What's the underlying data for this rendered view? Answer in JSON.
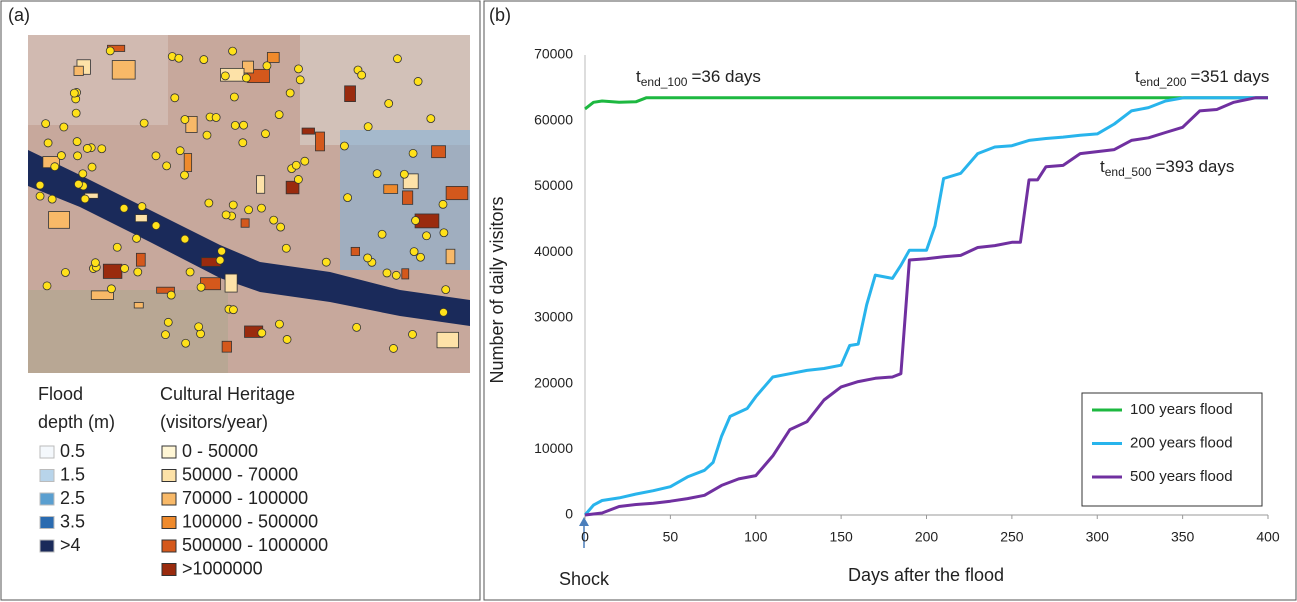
{
  "panel_a": {
    "label": "(a)",
    "flood_legend": {
      "title": [
        "Flood",
        "depth (m)"
      ],
      "items": [
        {
          "label": "0.5",
          "color": "#f4f8fc"
        },
        {
          "label": "1.5",
          "color": "#b8d4ea"
        },
        {
          "label": "2.5",
          "color": "#5a9fd0"
        },
        {
          "label": "3.5",
          "color": "#2a6bb0"
        },
        {
          "label": ">4",
          "color": "#1a2a5a"
        }
      ]
    },
    "heritage_legend": {
      "title": [
        "Cultural Heritage",
        "(visitors/year)"
      ],
      "items": [
        {
          "label": "0 - 50000",
          "color": "#fff6d5"
        },
        {
          "label": "50000 - 70000",
          "color": "#fde2a8"
        },
        {
          "label": "70000 - 100000",
          "color": "#f8b968"
        },
        {
          "label": "100000 - 500000",
          "color": "#ef8a2c"
        },
        {
          "label": "500000 - 1000000",
          "color": "#d4581c"
        },
        {
          "label": ">1000000",
          "color": "#9a2b0e"
        }
      ]
    }
  },
  "chart_data": {
    "type": "line",
    "panel_label": "(b)",
    "x_label": "Days after the flood",
    "y_label": "Number of daily visitors",
    "shock_label": "Shock",
    "xlim": [
      0,
      400
    ],
    "xticks": [
      0,
      50,
      100,
      150,
      200,
      250,
      300,
      350,
      400
    ],
    "ylim": [
      0,
      70000
    ],
    "yticks": [
      0,
      10000,
      20000,
      30000,
      40000,
      50000,
      60000,
      70000
    ],
    "grid": false,
    "legend_position": "lower right",
    "annotations": [
      {
        "t": "t",
        "sub": "end_100",
        "text": "=36 days"
      },
      {
        "t": "t",
        "sub": "end_200",
        "text": "=351 days"
      },
      {
        "t": "t",
        "sub": "end_500",
        "text": "=393 days"
      }
    ],
    "series": [
      {
        "name": "100 years flood",
        "color": "#1db840",
        "x": [
          0,
          5,
          10,
          20,
          30,
          36,
          50,
          100,
          200,
          300,
          400
        ],
        "values": [
          61800,
          62800,
          63000,
          62800,
          62900,
          63500,
          63500,
          63500,
          63500,
          63500,
          63500
        ]
      },
      {
        "name": "200 years flood",
        "color": "#28b4ec",
        "x": [
          0,
          5,
          10,
          20,
          30,
          40,
          50,
          60,
          70,
          75,
          80,
          85,
          95,
          100,
          110,
          120,
          130,
          140,
          150,
          155,
          160,
          165,
          170,
          180,
          185,
          190,
          200,
          205,
          210,
          220,
          230,
          240,
          250,
          260,
          270,
          280,
          290,
          300,
          310,
          320,
          330,
          340,
          351,
          400
        ],
        "values": [
          0,
          1500,
          2200,
          2600,
          3200,
          3700,
          4300,
          5800,
          6800,
          8000,
          12000,
          15000,
          16200,
          18000,
          21000,
          21500,
          22000,
          22300,
          22800,
          25800,
          26000,
          32000,
          36500,
          36000,
          38000,
          40300,
          40300,
          44000,
          51200,
          52000,
          55000,
          56000,
          56200,
          57000,
          57300,
          57500,
          57800,
          58000,
          59500,
          61500,
          62000,
          63000,
          63500,
          63500
        ]
      },
      {
        "name": "500 years flood",
        "color": "#7030a0",
        "x": [
          0,
          10,
          20,
          30,
          40,
          50,
          60,
          70,
          80,
          90,
          100,
          110,
          120,
          130,
          140,
          150,
          160,
          170,
          180,
          185,
          190,
          200,
          210,
          220,
          230,
          240,
          250,
          255,
          260,
          265,
          270,
          280,
          290,
          300,
          310,
          320,
          330,
          340,
          350,
          360,
          370,
          380,
          393,
          400
        ],
        "values": [
          0,
          300,
          1300,
          1600,
          1800,
          2100,
          2500,
          3000,
          4500,
          5500,
          6000,
          9000,
          13000,
          14200,
          17500,
          19500,
          20300,
          20800,
          21000,
          21500,
          38800,
          39000,
          39300,
          39500,
          40700,
          41000,
          41500,
          41500,
          51000,
          51000,
          53000,
          53200,
          55000,
          55300,
          55600,
          57000,
          57400,
          58200,
          59000,
          61500,
          61700,
          62800,
          63500,
          63500
        ]
      }
    ]
  }
}
